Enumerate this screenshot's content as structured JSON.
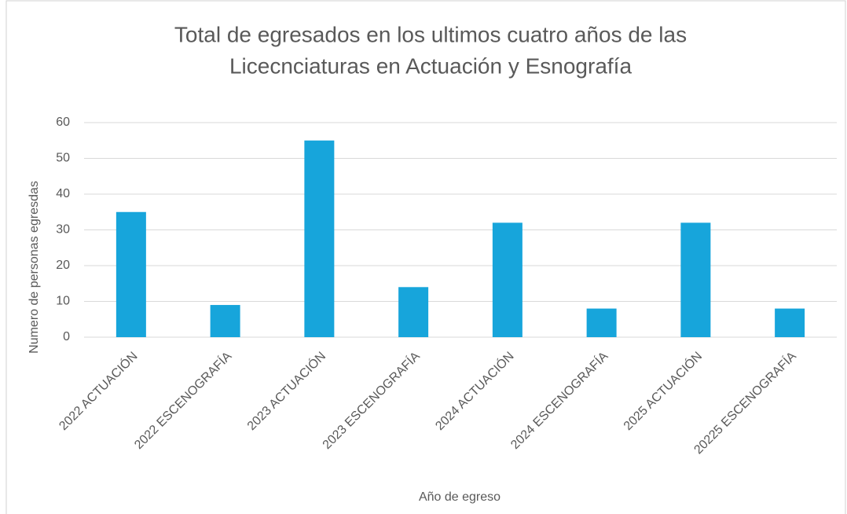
{
  "chart_data": {
    "type": "bar",
    "title": [
      "Total de egresados en los ultimos cuatro años de las",
      "Licecnciaturas en Actuación y Esnografía"
    ],
    "x_label": "Año de egreso",
    "y_label": "Numero de personas egresdas",
    "categories": [
      "2022 ACTUACIÓN",
      "2022 ESCENOGRAFÍA",
      "2023 ACTUACIÓN",
      "2023 ESCENOGRAFÍA",
      "2024 ACTUACIÓN",
      "2024 ESCENOGRAFÍA",
      "2025 ACTUACIÓN",
      "20225 ESCENOGRAFÍA"
    ],
    "values": [
      35,
      9,
      55,
      14,
      32,
      8,
      32,
      8
    ],
    "color": "#17a5db",
    "ylim": [
      0,
      60
    ],
    "yticks": [
      0,
      10,
      20,
      30,
      40,
      50,
      60
    ],
    "grid": true
  }
}
